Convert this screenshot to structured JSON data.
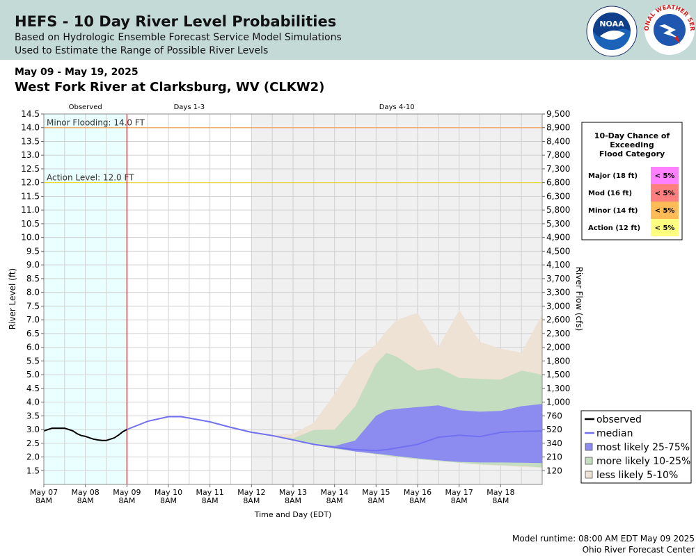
{
  "header": {
    "title": "HEFS - 10 Day River Level Probabilities",
    "subtitle1": "Based on Hydrologic Ensemble Forecast Service Model Simulations",
    "subtitle2": "Used to Estimate the Range of Possible River Levels",
    "noaa_logo_text": "NOAA",
    "nws_logo_text": "NATIONAL WEATHER SERVICE"
  },
  "date_range": "May 09 - May 19, 2025",
  "station": "West Fork River at Clarksburg, WV (CLKW2)",
  "footer": {
    "runtime": "Model runtime: 08:00 AM EDT May 09 2025",
    "center": "Ohio River Forecast Center"
  },
  "colors": {
    "observed_bg": "#eaffff",
    "forecast_bg": "#f0f0f0",
    "minor_line": "#f0a860",
    "action_line": "#e8d830",
    "now_line": "#d03030",
    "band_5_10": "#eee2d4",
    "band_10_25": "#c4dcc0",
    "band_25_75": "#8c8cf0",
    "median": "#7070f0",
    "observed": "#000000"
  },
  "chart_data": {
    "type": "area",
    "title": "",
    "xlabel": "Time and Day (EDT)",
    "ylabel": "River Level (ft)",
    "y2label": "River Flow (cfs)",
    "ylim": [
      1.0,
      14.5
    ],
    "xlim": [
      "2025-05-07 08:00",
      "2025-05-19 08:00"
    ],
    "grid": true,
    "period_labels": [
      "Observed",
      "Days 1-3",
      "Days 4-10"
    ],
    "y_ticks": [
      1.5,
      2.0,
      2.5,
      3.0,
      3.5,
      4.0,
      4.5,
      5.0,
      5.5,
      6.0,
      6.5,
      7.0,
      7.5,
      8.0,
      8.5,
      9.0,
      9.5,
      10.0,
      10.5,
      11.0,
      11.5,
      12.0,
      12.5,
      13.0,
      13.5,
      14.0,
      14.5
    ],
    "y_tick_labels": [
      "1.5",
      "2.0",
      "2.5",
      "3.0",
      "3.5",
      "4.0",
      "4.5",
      "5.0",
      "5.5",
      "6.0",
      "6.5",
      "7.0",
      "7.5",
      "8.0",
      "8.5",
      "9.0",
      "9.5",
      "10.0",
      "10.5",
      "11.0",
      "11.5",
      "12.0",
      "12.5",
      "13.0",
      "13.5",
      "14.0",
      "14.5"
    ],
    "y2_ticks": [
      {
        "stage": 1.5,
        "label": "120"
      },
      {
        "stage": 2.0,
        "label": "210"
      },
      {
        "stage": 2.5,
        "label": "340"
      },
      {
        "stage": 3.0,
        "label": "520"
      },
      {
        "stage": 3.5,
        "label": "760"
      },
      {
        "stage": 4.0,
        "label": "1,000"
      },
      {
        "stage": 4.5,
        "label": "1,300"
      },
      {
        "stage": 5.0,
        "label": "1,500"
      },
      {
        "stage": 5.5,
        "label": "1,800"
      },
      {
        "stage": 6.0,
        "label": "2,000"
      },
      {
        "stage": 6.5,
        "label": "2,300"
      },
      {
        "stage": 7.0,
        "label": "2,600"
      },
      {
        "stage": 7.5,
        "label": "3,000"
      },
      {
        "stage": 8.0,
        "label": "3,300"
      },
      {
        "stage": 8.5,
        "label": "3,700"
      },
      {
        "stage": 9.0,
        "label": "4,100"
      },
      {
        "stage": 9.5,
        "label": "4,500"
      },
      {
        "stage": 10.0,
        "label": "4,900"
      },
      {
        "stage": 10.5,
        "label": "5,300"
      },
      {
        "stage": 11.0,
        "label": "5,800"
      },
      {
        "stage": 11.5,
        "label": "6,300"
      },
      {
        "stage": 12.0,
        "label": "6,800"
      },
      {
        "stage": 12.5,
        "label": "7,300"
      },
      {
        "stage": 13.0,
        "label": "7,800"
      },
      {
        "stage": 13.5,
        "label": "8,400"
      },
      {
        "stage": 14.0,
        "label": "8,900"
      },
      {
        "stage": 14.5,
        "label": "9,500"
      }
    ],
    "x_ticks": [
      {
        "day": 0,
        "label1": "May 07",
        "label2": "8AM"
      },
      {
        "day": 1,
        "label1": "May 08",
        "label2": "8AM"
      },
      {
        "day": 2,
        "label1": "May 09",
        "label2": "8AM"
      },
      {
        "day": 3,
        "label1": "May 10",
        "label2": "8AM"
      },
      {
        "day": 4,
        "label1": "May 11",
        "label2": "8AM"
      },
      {
        "day": 5,
        "label1": "May 12",
        "label2": "8AM"
      },
      {
        "day": 6,
        "label1": "May 13",
        "label2": "8AM"
      },
      {
        "day": 7,
        "label1": "May 14",
        "label2": "8AM"
      },
      {
        "day": 8,
        "label1": "May 15",
        "label2": "8AM"
      },
      {
        "day": 9,
        "label1": "May 16",
        "label2": "8AM"
      },
      {
        "day": 10,
        "label1": "May 17",
        "label2": "8AM"
      },
      {
        "day": 11,
        "label1": "May 18",
        "label2": "8AM"
      }
    ],
    "thresholds": [
      {
        "name": "Minor Flooding",
        "label": "Minor Flooding: 14.0 FT",
        "stage": 14.0
      },
      {
        "name": "Action Level",
        "label": "Action Level: 12.0 FT",
        "stage": 12.0
      }
    ],
    "periods": {
      "observed_end_day": 2,
      "days_1_3_end_day": 5,
      "end_day": 12
    },
    "observed": {
      "x": [
        0,
        0.1,
        0.2,
        0.3,
        0.4,
        0.5,
        0.6,
        0.7,
        0.8,
        0.9,
        1.0,
        1.1,
        1.2,
        1.3,
        1.4,
        1.5,
        1.6,
        1.7,
        1.8,
        1.9,
        2.0
      ],
      "y": [
        2.95,
        3.0,
        3.05,
        3.05,
        3.05,
        3.05,
        3.0,
        2.95,
        2.85,
        2.78,
        2.75,
        2.7,
        2.65,
        2.62,
        2.6,
        2.6,
        2.65,
        2.7,
        2.8,
        2.92,
        3.0
      ]
    },
    "forecast_x": [
      2.0,
      2.5,
      3.0,
      3.3,
      3.5,
      4.0,
      4.5,
      5.0,
      5.5,
      6.0,
      6.5,
      7.0,
      7.5,
      8.0,
      8.25,
      8.5,
      9.0,
      9.5,
      10.0,
      10.5,
      11.0,
      11.5,
      12.0
    ],
    "median": [
      3.0,
      3.3,
      3.47,
      3.47,
      3.42,
      3.28,
      3.08,
      2.9,
      2.78,
      2.62,
      2.46,
      2.35,
      2.27,
      2.23,
      2.27,
      2.33,
      2.46,
      2.72,
      2.79,
      2.74,
      2.9,
      2.93,
      2.95
    ],
    "p25": [
      3.0,
      3.3,
      3.47,
      3.47,
      3.42,
      3.28,
      3.08,
      2.9,
      2.78,
      2.62,
      2.46,
      2.33,
      2.2,
      2.12,
      2.08,
      2.03,
      1.95,
      1.88,
      1.82,
      1.8,
      1.8,
      1.79,
      1.78
    ],
    "p75": [
      3.0,
      3.3,
      3.47,
      3.47,
      3.42,
      3.28,
      3.08,
      2.9,
      2.78,
      2.62,
      2.46,
      2.4,
      2.6,
      3.5,
      3.7,
      3.75,
      3.82,
      3.88,
      3.7,
      3.65,
      3.68,
      3.85,
      3.93
    ],
    "p10": [
      3.0,
      3.3,
      3.47,
      3.47,
      3.42,
      3.28,
      3.08,
      2.9,
      2.78,
      2.62,
      2.46,
      2.3,
      2.2,
      2.1,
      2.05,
      2.0,
      1.92,
      1.85,
      1.79,
      1.73,
      1.7,
      1.67,
      1.62
    ],
    "p90": [
      3.0,
      3.3,
      3.47,
      3.47,
      3.42,
      3.28,
      3.08,
      2.9,
      2.78,
      2.68,
      2.98,
      3.0,
      3.85,
      5.4,
      5.8,
      5.65,
      5.15,
      5.25,
      4.88,
      4.85,
      4.82,
      5.15,
      5.0
    ],
    "p5": [
      3.0,
      3.3,
      3.47,
      3.47,
      3.42,
      3.28,
      3.08,
      2.9,
      2.78,
      2.62,
      2.45,
      2.3,
      2.2,
      2.1,
      2.05,
      2.0,
      1.92,
      1.85,
      1.79,
      1.72,
      1.68,
      1.64,
      1.6
    ],
    "p95": [
      3.0,
      3.3,
      3.47,
      3.47,
      3.42,
      3.28,
      3.08,
      2.9,
      2.8,
      2.85,
      3.25,
      4.3,
      5.5,
      6.1,
      6.6,
      7.0,
      7.25,
      6.0,
      7.35,
      6.2,
      5.95,
      5.8,
      7.2
    ],
    "legend": [
      {
        "label": "observed",
        "kind": "line",
        "color": "#000000"
      },
      {
        "label": "median",
        "kind": "line",
        "color": "#7070f0"
      },
      {
        "label": "most likely 25-75%",
        "kind": "box",
        "color": "#8c8cf0"
      },
      {
        "label": "more likely 10-25%",
        "kind": "box",
        "color": "#c4dcc0"
      },
      {
        "label": "less likely 5-10%",
        "kind": "box",
        "color": "#eee2d4"
      }
    ],
    "legend_position": "bottom-right",
    "exceedance_table": {
      "title_lines": [
        "10-Day Chance of",
        "Exceeding",
        "Flood Category"
      ],
      "rows": [
        {
          "category": "Major (18 ft)",
          "chance": "< 5%",
          "color": "#ff80ff"
        },
        {
          "category": "Mod (16 ft)",
          "chance": "< 5%",
          "color": "#ff7f7f"
        },
        {
          "category": "Minor (14 ft)",
          "chance": "< 5%",
          "color": "#ffbb55"
        },
        {
          "category": "Action (12 ft)",
          "chance": "< 5%",
          "color": "#ffff80"
        }
      ]
    }
  }
}
